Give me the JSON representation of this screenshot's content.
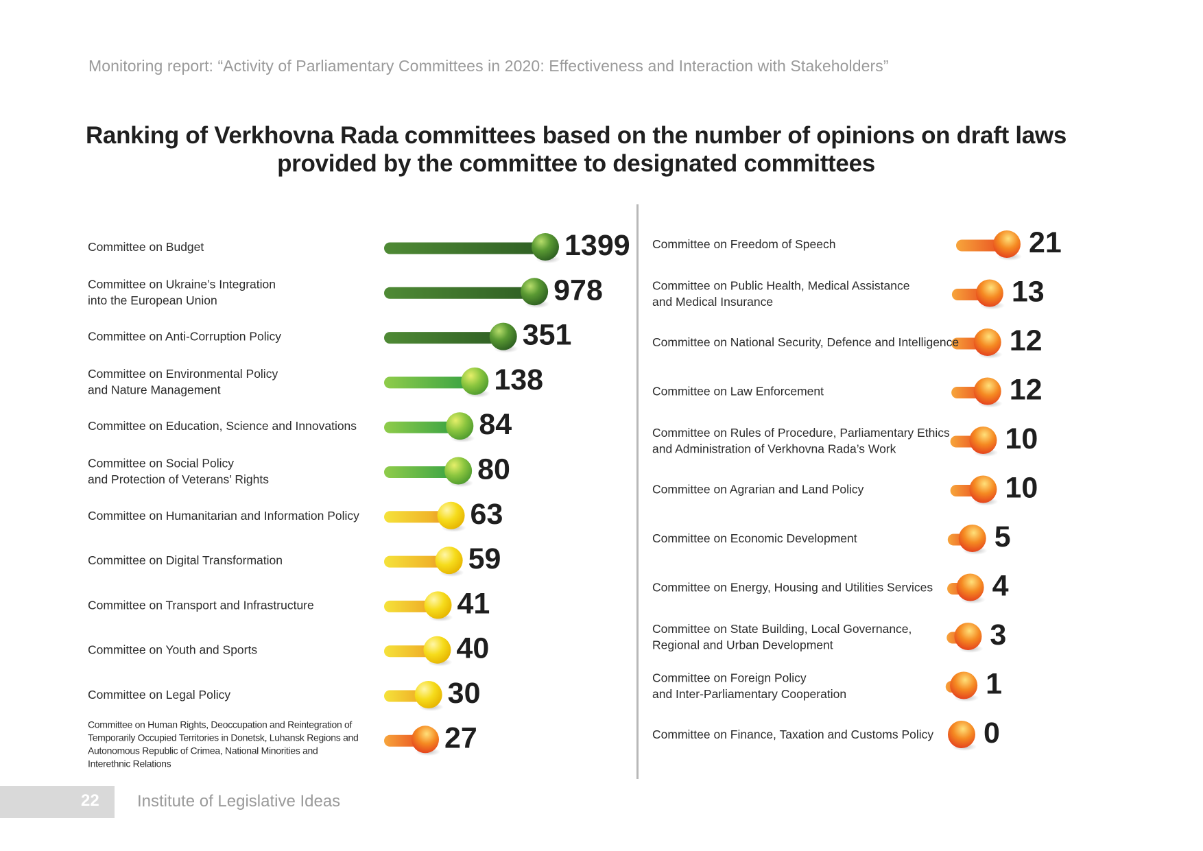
{
  "header": {
    "report_title": "Monitoring report: “Activity of Parliamentary Committees in 2020: Effectiveness and Interaction with Stakeholders”"
  },
  "title": {
    "line1": "Ranking of Verkhovna Rada committees based on the number of opinions on draft laws",
    "line2": "provided by the committee to designated committees"
  },
  "footer": {
    "page_number": "22",
    "publisher": "Institute of Legislative Ideas"
  },
  "colors": {
    "dark_green": "#3f7a2c",
    "light_green": "#6ab83a",
    "yellow": "#f2d21b",
    "orange_red": "#ec4a1c",
    "divider": "#b8b8b8"
  },
  "chart_data": {
    "type": "bar",
    "title": "Ranking of Verkhovna Rada committees based on the number of opinions on draft laws provided by the committee to designated committees",
    "xlabel": "",
    "ylabel": "",
    "grid": false,
    "legend": "none",
    "left_column": [
      {
        "label": [
          "Committee on Budget"
        ],
        "value": 1399,
        "color_group": "dark_green"
      },
      {
        "label": [
          "Committee on Ukraine’s Integration",
          "into the European Union"
        ],
        "value": 978,
        "color_group": "dark_green"
      },
      {
        "label": [
          "Committee on Anti-Corruption Policy"
        ],
        "value": 351,
        "color_group": "dark_green"
      },
      {
        "label": [
          "Committee on Environmental Policy",
          "and Nature Management"
        ],
        "value": 138,
        "color_group": "light_green"
      },
      {
        "label": [
          "Committee on Education, Science and Innovations"
        ],
        "value": 84,
        "color_group": "light_green"
      },
      {
        "label": [
          "Committee on Social Policy",
          "and Protection of Veterans’ Rights"
        ],
        "value": 80,
        "color_group": "light_green"
      },
      {
        "label": [
          "Committee on Humanitarian and Information Policy"
        ],
        "value": 63,
        "color_group": "yellow"
      },
      {
        "label": [
          "Committee on Digital Transformation"
        ],
        "value": 59,
        "color_group": "yellow"
      },
      {
        "label": [
          "Committee on Transport and Infrastructure"
        ],
        "value": 41,
        "color_group": "yellow"
      },
      {
        "label": [
          "Committee on Youth and Sports"
        ],
        "value": 40,
        "color_group": "yellow"
      },
      {
        "label": [
          "Committee on Legal Policy"
        ],
        "value": 30,
        "color_group": "yellow"
      },
      {
        "label": [
          "Committee on Human Rights, Deoccupation and Reintegration of",
          "Temporarily Occupied Territories in Donetsk, Luhansk Regions and",
          "Autonomous Republic of Crimea, National Minorities and",
          "Interethnic Relations"
        ],
        "value": 27,
        "color_group": "orange_red"
      }
    ],
    "right_column": [
      {
        "label": [
          "Committee on Freedom of Speech"
        ],
        "value": 21,
        "color_group": "orange_red"
      },
      {
        "label": [
          "Committee on Public Health, Medical Assistance",
          "and Medical Insurance"
        ],
        "value": 13,
        "color_group": "orange_red"
      },
      {
        "label": [
          "Committee on National Security, Defence and Intelligence"
        ],
        "value": 12,
        "color_group": "orange_red"
      },
      {
        "label": [
          "Committee on Law Enforcement"
        ],
        "value": 12,
        "color_group": "orange_red"
      },
      {
        "label": [
          "Committee on Rules of Procedure, Parliamentary Ethics",
          "and Administration of Verkhovna Rada’s Work"
        ],
        "value": 10,
        "color_group": "orange_red"
      },
      {
        "label": [
          "Committee on Agrarian and Land Policy"
        ],
        "value": 10,
        "color_group": "orange_red"
      },
      {
        "label": [
          "Committee on Economic Development"
        ],
        "value": 5,
        "color_group": "orange_red"
      },
      {
        "label": [
          "Committee on Energy, Housing and Utilities Services"
        ],
        "value": 4,
        "color_group": "orange_red"
      },
      {
        "label": [
          "Committee on State Building, Local Governance,",
          "Regional and Urban Development"
        ],
        "value": 3,
        "color_group": "orange_red"
      },
      {
        "label": [
          "Committee on Foreign Policy",
          "and Inter-Parliamentary Cooperation"
        ],
        "value": 1,
        "color_group": "orange_red"
      },
      {
        "label": [
          "Committee on Finance, Taxation and Customs Policy"
        ],
        "value": 0,
        "color_group": "orange_red"
      }
    ]
  }
}
